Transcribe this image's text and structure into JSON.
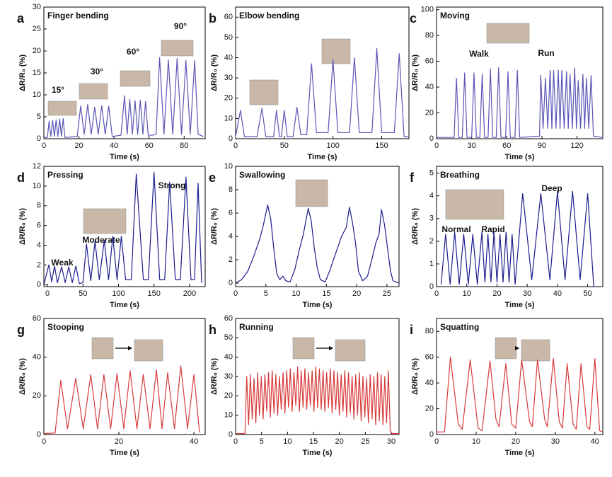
{
  "chart_data": [
    {
      "type": "line",
      "panel": "a",
      "title": "Finger bending",
      "xlabel": "Time (s)",
      "ylabel": "ΔR/R₀ (%)",
      "color": "#5b55b5",
      "annotations": [
        "15°",
        "30°",
        "60°",
        "90°"
      ],
      "xlim": [
        0,
        92
      ],
      "ylim": [
        0,
        30
      ],
      "xticks": [
        0,
        20,
        40,
        60,
        80
      ],
      "yticks": [
        0,
        5,
        10,
        15,
        20,
        25,
        30
      ],
      "x": [
        0,
        2,
        3,
        4,
        5,
        6,
        7,
        8,
        9,
        10,
        11,
        12,
        19,
        21,
        23,
        25,
        27,
        29,
        31,
        33,
        35,
        37,
        39,
        44,
        46,
        47.5,
        49,
        50.5,
        52,
        53.5,
        55,
        56.5,
        58,
        59.5,
        62,
        64,
        66,
        68.5,
        71,
        73.5,
        76,
        78.5,
        81,
        83.5,
        86,
        88,
        91
      ],
      "values": [
        0.3,
        0.3,
        4,
        0.5,
        4.2,
        0.5,
        4.3,
        0.5,
        4.5,
        0.5,
        4.6,
        0.3,
        0.5,
        7.5,
        1,
        7.8,
        1,
        7.2,
        1,
        7.5,
        1,
        7.4,
        0.5,
        0.8,
        9.8,
        1,
        9,
        1,
        8.7,
        1,
        8.8,
        1,
        8.5,
        0.8,
        0.8,
        1,
        18.5,
        1,
        18,
        1,
        18.3,
        1,
        17.8,
        1,
        17.8,
        1,
        0.5
      ]
    },
    {
      "type": "line",
      "panel": "b",
      "title": "Elbow bending",
      "xlabel": "Time (s)",
      "ylabel": "ΔR/R₀ (%)",
      "color": "#5b55b5",
      "annotations": [],
      "xlim": [
        0,
        178
      ],
      "ylim": [
        0,
        65
      ],
      "xticks": [
        0,
        50,
        100,
        150
      ],
      "yticks": [
        0,
        10,
        20,
        30,
        40,
        50,
        60
      ],
      "x": [
        0,
        5,
        9,
        22,
        27,
        31,
        39,
        42,
        45,
        47,
        50,
        53,
        59,
        63,
        67,
        73,
        78,
        83,
        95,
        100,
        105,
        117,
        122,
        127,
        140,
        145,
        150,
        163,
        168,
        173,
        178
      ],
      "values": [
        1,
        14,
        1,
        1,
        15,
        1,
        1,
        14,
        1,
        1,
        14,
        1,
        1,
        15.5,
        2,
        2,
        37,
        3,
        3,
        39,
        3,
        3,
        40,
        3,
        3,
        44.5,
        3,
        3,
        42,
        1,
        1
      ]
    },
    {
      "type": "line",
      "panel": "c",
      "title": "Moving",
      "xlabel": "Time (s)",
      "ylabel": "ΔR/R₀ (%)",
      "color": "#5b55b5",
      "annotations": [
        "Walk",
        "Run"
      ],
      "xlim": [
        0,
        142
      ],
      "ylim": [
        0,
        102
      ],
      "xticks": [
        0,
        30,
        60,
        90,
        120
      ],
      "yticks": [
        0,
        20,
        40,
        60,
        80,
        100
      ],
      "x": [
        0,
        15,
        17,
        19,
        22,
        24,
        26,
        30,
        32,
        34,
        37,
        39,
        41,
        44,
        46,
        48,
        51,
        53,
        55,
        59,
        61,
        63,
        67,
        69,
        71,
        88,
        89,
        91,
        93,
        95,
        97,
        98.5,
        100,
        102,
        104,
        105.5,
        107,
        109,
        111,
        112.5,
        114,
        116,
        118,
        119.5,
        121,
        123,
        125,
        126.5,
        128,
        130,
        132,
        134,
        142
      ],
      "values": [
        1,
        1,
        47,
        1,
        1,
        51,
        1,
        1,
        51,
        1,
        1,
        50,
        1,
        1,
        54,
        1,
        1,
        55,
        1,
        1,
        52,
        1,
        1,
        53,
        1,
        2,
        49,
        8,
        47,
        8,
        53,
        8,
        53,
        8,
        53,
        8,
        53,
        8,
        52,
        8,
        50,
        8,
        55,
        8,
        45,
        8,
        50,
        8,
        47,
        8,
        49,
        2,
        1
      ]
    },
    {
      "type": "line",
      "panel": "d",
      "title": "Pressing",
      "xlabel": "Time (s)",
      "ylabel": "ΔR/R₀ (%)",
      "color": "#1c1c8e",
      "annotations": [
        "Weak",
        "Moderate",
        "Strong"
      ],
      "xlim": [
        -5,
        222
      ],
      "ylim": [
        -0.2,
        12
      ],
      "xticks": [
        0,
        50,
        100,
        150,
        200
      ],
      "yticks": [
        0,
        2,
        4,
        6,
        8,
        10,
        12
      ],
      "x": [
        -5,
        2,
        6,
        10,
        14,
        20,
        25,
        30,
        35,
        40,
        45,
        50,
        55,
        61,
        67,
        73,
        80,
        86,
        92,
        98,
        104,
        110,
        118,
        125,
        135,
        142,
        150,
        158,
        165,
        172,
        180,
        187,
        195,
        202,
        207,
        212,
        217
      ],
      "values": [
        0,
        2,
        0.3,
        1.9,
        0.2,
        1.8,
        0.2,
        1.8,
        0.2,
        1.9,
        0.1,
        0.2,
        4.1,
        0.4,
        4.4,
        0.5,
        4.5,
        0.5,
        4.9,
        0.5,
        4.9,
        0.5,
        0.5,
        11.2,
        0.5,
        0.5,
        11.4,
        0.5,
        0.5,
        10.4,
        0.5,
        0.5,
        10.9,
        0.5,
        0.5,
        10.3,
        0.2
      ]
    },
    {
      "type": "line",
      "panel": "e",
      "title": "Swallowing",
      "xlabel": "Time (s)",
      "ylabel": "ΔR/R₀ (%)",
      "color": "#1c1c8e",
      "annotations": [],
      "xlim": [
        0,
        27
      ],
      "ylim": [
        -0.3,
        10
      ],
      "xticks": [
        0,
        5,
        10,
        15,
        20,
        25
      ],
      "yticks": [
        0,
        2,
        4,
        6,
        8,
        10
      ],
      "x": [
        0,
        1,
        2,
        3,
        4,
        4.6,
        5.3,
        5.8,
        6.3,
        6.8,
        7.3,
        7.8,
        8.3,
        9,
        9.8,
        10.5,
        11.2,
        12,
        12.5,
        13,
        13.5,
        14,
        14.8,
        15.5,
        16.5,
        17.5,
        18.3,
        18.8,
        19.3,
        19.8,
        20.3,
        21,
        21.8,
        22.5,
        23.2,
        23.7,
        24.1,
        24.6,
        25.1,
        25.6,
        26,
        27
      ],
      "values": [
        0,
        0.3,
        1,
        2.3,
        3.8,
        5,
        6.7,
        5.5,
        3,
        0.8,
        0.3,
        0.6,
        0.2,
        0.1,
        1.2,
        2.8,
        4.2,
        6.4,
        5.3,
        3,
        1.3,
        0.3,
        0.1,
        1,
        2.5,
        4,
        4.8,
        6.5,
        5.2,
        3.5,
        1,
        0.2,
        0.6,
        2,
        3.5,
        4.2,
        6.3,
        5,
        3,
        1,
        0.2,
        0
      ]
    },
    {
      "type": "line",
      "panel": "f",
      "title": "Breathing",
      "xlabel": "Time (s)",
      "ylabel": "ΔR/R₀ (%)",
      "color": "#1c1c8e",
      "annotations": [
        "Normal",
        "Rapid",
        "Deep"
      ],
      "xlim": [
        0,
        55
      ],
      "ylim": [
        0,
        5.3
      ],
      "xticks": [
        0,
        10,
        20,
        30,
        40,
        50
      ],
      "yticks": [
        0,
        1,
        2,
        3,
        4,
        5
      ],
      "x": [
        1.5,
        3,
        4.5,
        6,
        7.5,
        9,
        10.5,
        12,
        13.5,
        15,
        16,
        17,
        18,
        19,
        20,
        21,
        22,
        23,
        24,
        25,
        26,
        28.5,
        31.5,
        34.5,
        37.5,
        40,
        42.5,
        45,
        47.5,
        50,
        52
      ],
      "values": [
        0.1,
        2.3,
        0.1,
        2.4,
        0.1,
        2.3,
        0.1,
        2.3,
        0.1,
        2.4,
        0.2,
        2.3,
        0.2,
        2.4,
        0.2,
        2.3,
        0.2,
        2.4,
        0.2,
        2.3,
        0.1,
        4.1,
        0.3,
        4.1,
        0.3,
        4.2,
        0.3,
        4.2,
        0.3,
        4.1,
        0
      ]
    },
    {
      "type": "line",
      "panel": "g",
      "title": "Stooping",
      "xlabel": "Time (s)",
      "ylabel": "ΔR/R₀ (%)",
      "color": "#d83a3a",
      "annotations": [],
      "xlim": [
        0,
        43
      ],
      "ylim": [
        0,
        60
      ],
      "xticks": [
        0,
        20,
        40
      ],
      "yticks": [
        0,
        20,
        40,
        60
      ],
      "x": [
        0,
        3,
        4.5,
        6.3,
        8.5,
        10.5,
        12.5,
        14.3,
        16,
        17.8,
        19.5,
        21.3,
        23,
        24.8,
        26.5,
        28.3,
        30,
        31.5,
        33,
        34.8,
        36.5,
        38.3,
        40,
        41.5
      ],
      "values": [
        0.5,
        0.8,
        28,
        3,
        29,
        3,
        31,
        3,
        31,
        3,
        31.5,
        3,
        33,
        3,
        31,
        3,
        33.5,
        3,
        32,
        3,
        35.5,
        3,
        31,
        1
      ]
    },
    {
      "type": "line",
      "panel": "h",
      "title": "Running",
      "xlabel": "Time (s)",
      "ylabel": "ΔR/R₀ (%)",
      "color": "#d83a3a",
      "annotations": [],
      "xlim": [
        0,
        31.5
      ],
      "ylim": [
        0,
        60
      ],
      "xticks": [
        0,
        5,
        10,
        15,
        20,
        25,
        30
      ],
      "yticks": [
        0,
        10,
        20,
        30,
        40,
        50,
        60
      ],
      "x": [
        0,
        1.8,
        2.15,
        2.5,
        2.85,
        3.2,
        3.55,
        3.9,
        4.25,
        4.6,
        4.95,
        5.3,
        5.65,
        6.0,
        6.35,
        6.7,
        7.05,
        7.4,
        7.75,
        8.1,
        8.45,
        8.8,
        9.15,
        9.5,
        9.85,
        10.2,
        10.55,
        10.9,
        11.25,
        11.6,
        11.95,
        12.3,
        12.65,
        13.0,
        13.35,
        13.7,
        14.05,
        14.4,
        14.75,
        15.1,
        15.45,
        15.8,
        16.15,
        16.5,
        16.85,
        17.2,
        17.55,
        17.9,
        18.25,
        18.6,
        18.95,
        19.3,
        19.65,
        20.0,
        20.35,
        20.7,
        21.05,
        21.4,
        21.75,
        22.1,
        22.45,
        22.8,
        23.15,
        23.5,
        23.85,
        24.2,
        24.55,
        24.9,
        25.25,
        25.6,
        25.95,
        26.3,
        26.65,
        27.0,
        27.35,
        27.7,
        28.05,
        28.4,
        28.75,
        29.1,
        29.45,
        29.8,
        30.2,
        31.5
      ],
      "values": [
        0.5,
        0.5,
        30,
        5,
        31,
        8,
        29,
        6,
        32,
        10,
        30,
        8,
        31,
        12,
        32,
        9,
        33,
        11,
        31,
        10,
        30,
        13,
        32,
        11,
        33,
        14,
        34,
        12,
        32,
        15,
        35,
        12,
        33,
        14,
        34,
        13,
        32,
        15,
        33,
        12,
        35,
        14,
        34,
        13,
        33,
        12,
        32,
        14,
        34,
        11,
        33,
        13,
        32,
        10,
        31,
        12,
        33,
        9,
        32,
        11,
        30,
        8,
        31,
        10,
        32,
        7,
        30,
        9,
        29,
        6,
        31,
        8,
        30,
        5,
        32,
        7,
        31,
        5,
        30,
        6,
        33,
        2,
        0.5,
        0.5
      ]
    },
    {
      "type": "line",
      "panel": "i",
      "title": "Squatting",
      "xlabel": "Time (s)",
      "ylabel": "ΔR/R₀ (%)",
      "color": "#d83a3a",
      "annotations": [],
      "xlim": [
        0,
        42
      ],
      "ylim": [
        0,
        90
      ],
      "xticks": [
        0,
        10,
        20,
        30,
        40
      ],
      "yticks": [
        0,
        20,
        40,
        60,
        80
      ],
      "x": [
        0,
        2,
        3.5,
        5.5,
        6.5,
        8.5,
        10.5,
        11.5,
        13.5,
        15,
        15.8,
        17.5,
        19,
        20,
        21.5,
        23.5,
        24.2,
        25.5,
        27.3,
        28,
        29.5,
        31,
        31.8,
        33,
        34.5,
        35.3,
        36.5,
        38,
        38.7,
        40,
        41.2,
        42
      ],
      "values": [
        2,
        2,
        60,
        8,
        4,
        58,
        5,
        3,
        57,
        12,
        6,
        55,
        8,
        5,
        58,
        10,
        6,
        58,
        12,
        6,
        59,
        10,
        5,
        55,
        8,
        4,
        55,
        6,
        4,
        59,
        3,
        2
      ]
    }
  ]
}
